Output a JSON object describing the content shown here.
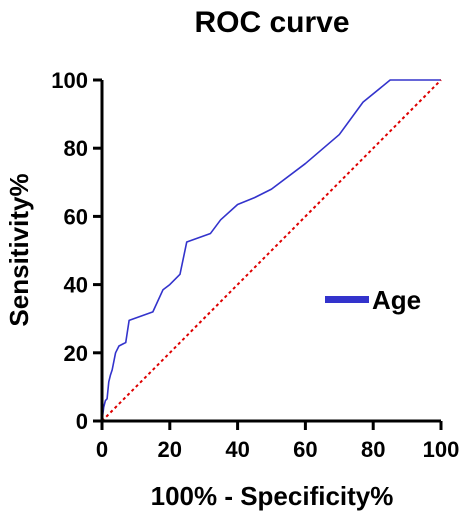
{
  "chart_data": {
    "type": "line",
    "title": "ROC curve",
    "xlabel": "100% - Specificity%",
    "ylabel": "Sensitivity%",
    "xlim": [
      0,
      100
    ],
    "ylim": [
      0,
      100
    ],
    "xticks": [
      0,
      20,
      40,
      60,
      80,
      100
    ],
    "yticks": [
      0,
      20,
      40,
      60,
      80,
      100
    ],
    "grid": false,
    "legend": "right",
    "series": [
      {
        "name": "Age",
        "color": "#3333cc",
        "x": [
          0,
          0.5,
          1,
          1.5,
          2,
          2.5,
          3,
          4,
          5,
          6,
          7,
          8,
          15,
          18,
          20,
          23,
          25,
          32,
          35,
          40,
          45,
          50,
          60,
          70,
          77,
          85,
          100
        ],
        "y": [
          0,
          4,
          6,
          6.5,
          11.5,
          13.5,
          15,
          20,
          22,
          22.5,
          23,
          29.5,
          32,
          38.5,
          40,
          43,
          52.5,
          55,
          59,
          63.5,
          65.5,
          68,
          75.5,
          84,
          93.5,
          100,
          100
        ]
      },
      {
        "name": "",
        "style": "dotted",
        "color": "#dd0000",
        "x": [
          0,
          100
        ],
        "y": [
          0,
          100
        ]
      }
    ]
  }
}
